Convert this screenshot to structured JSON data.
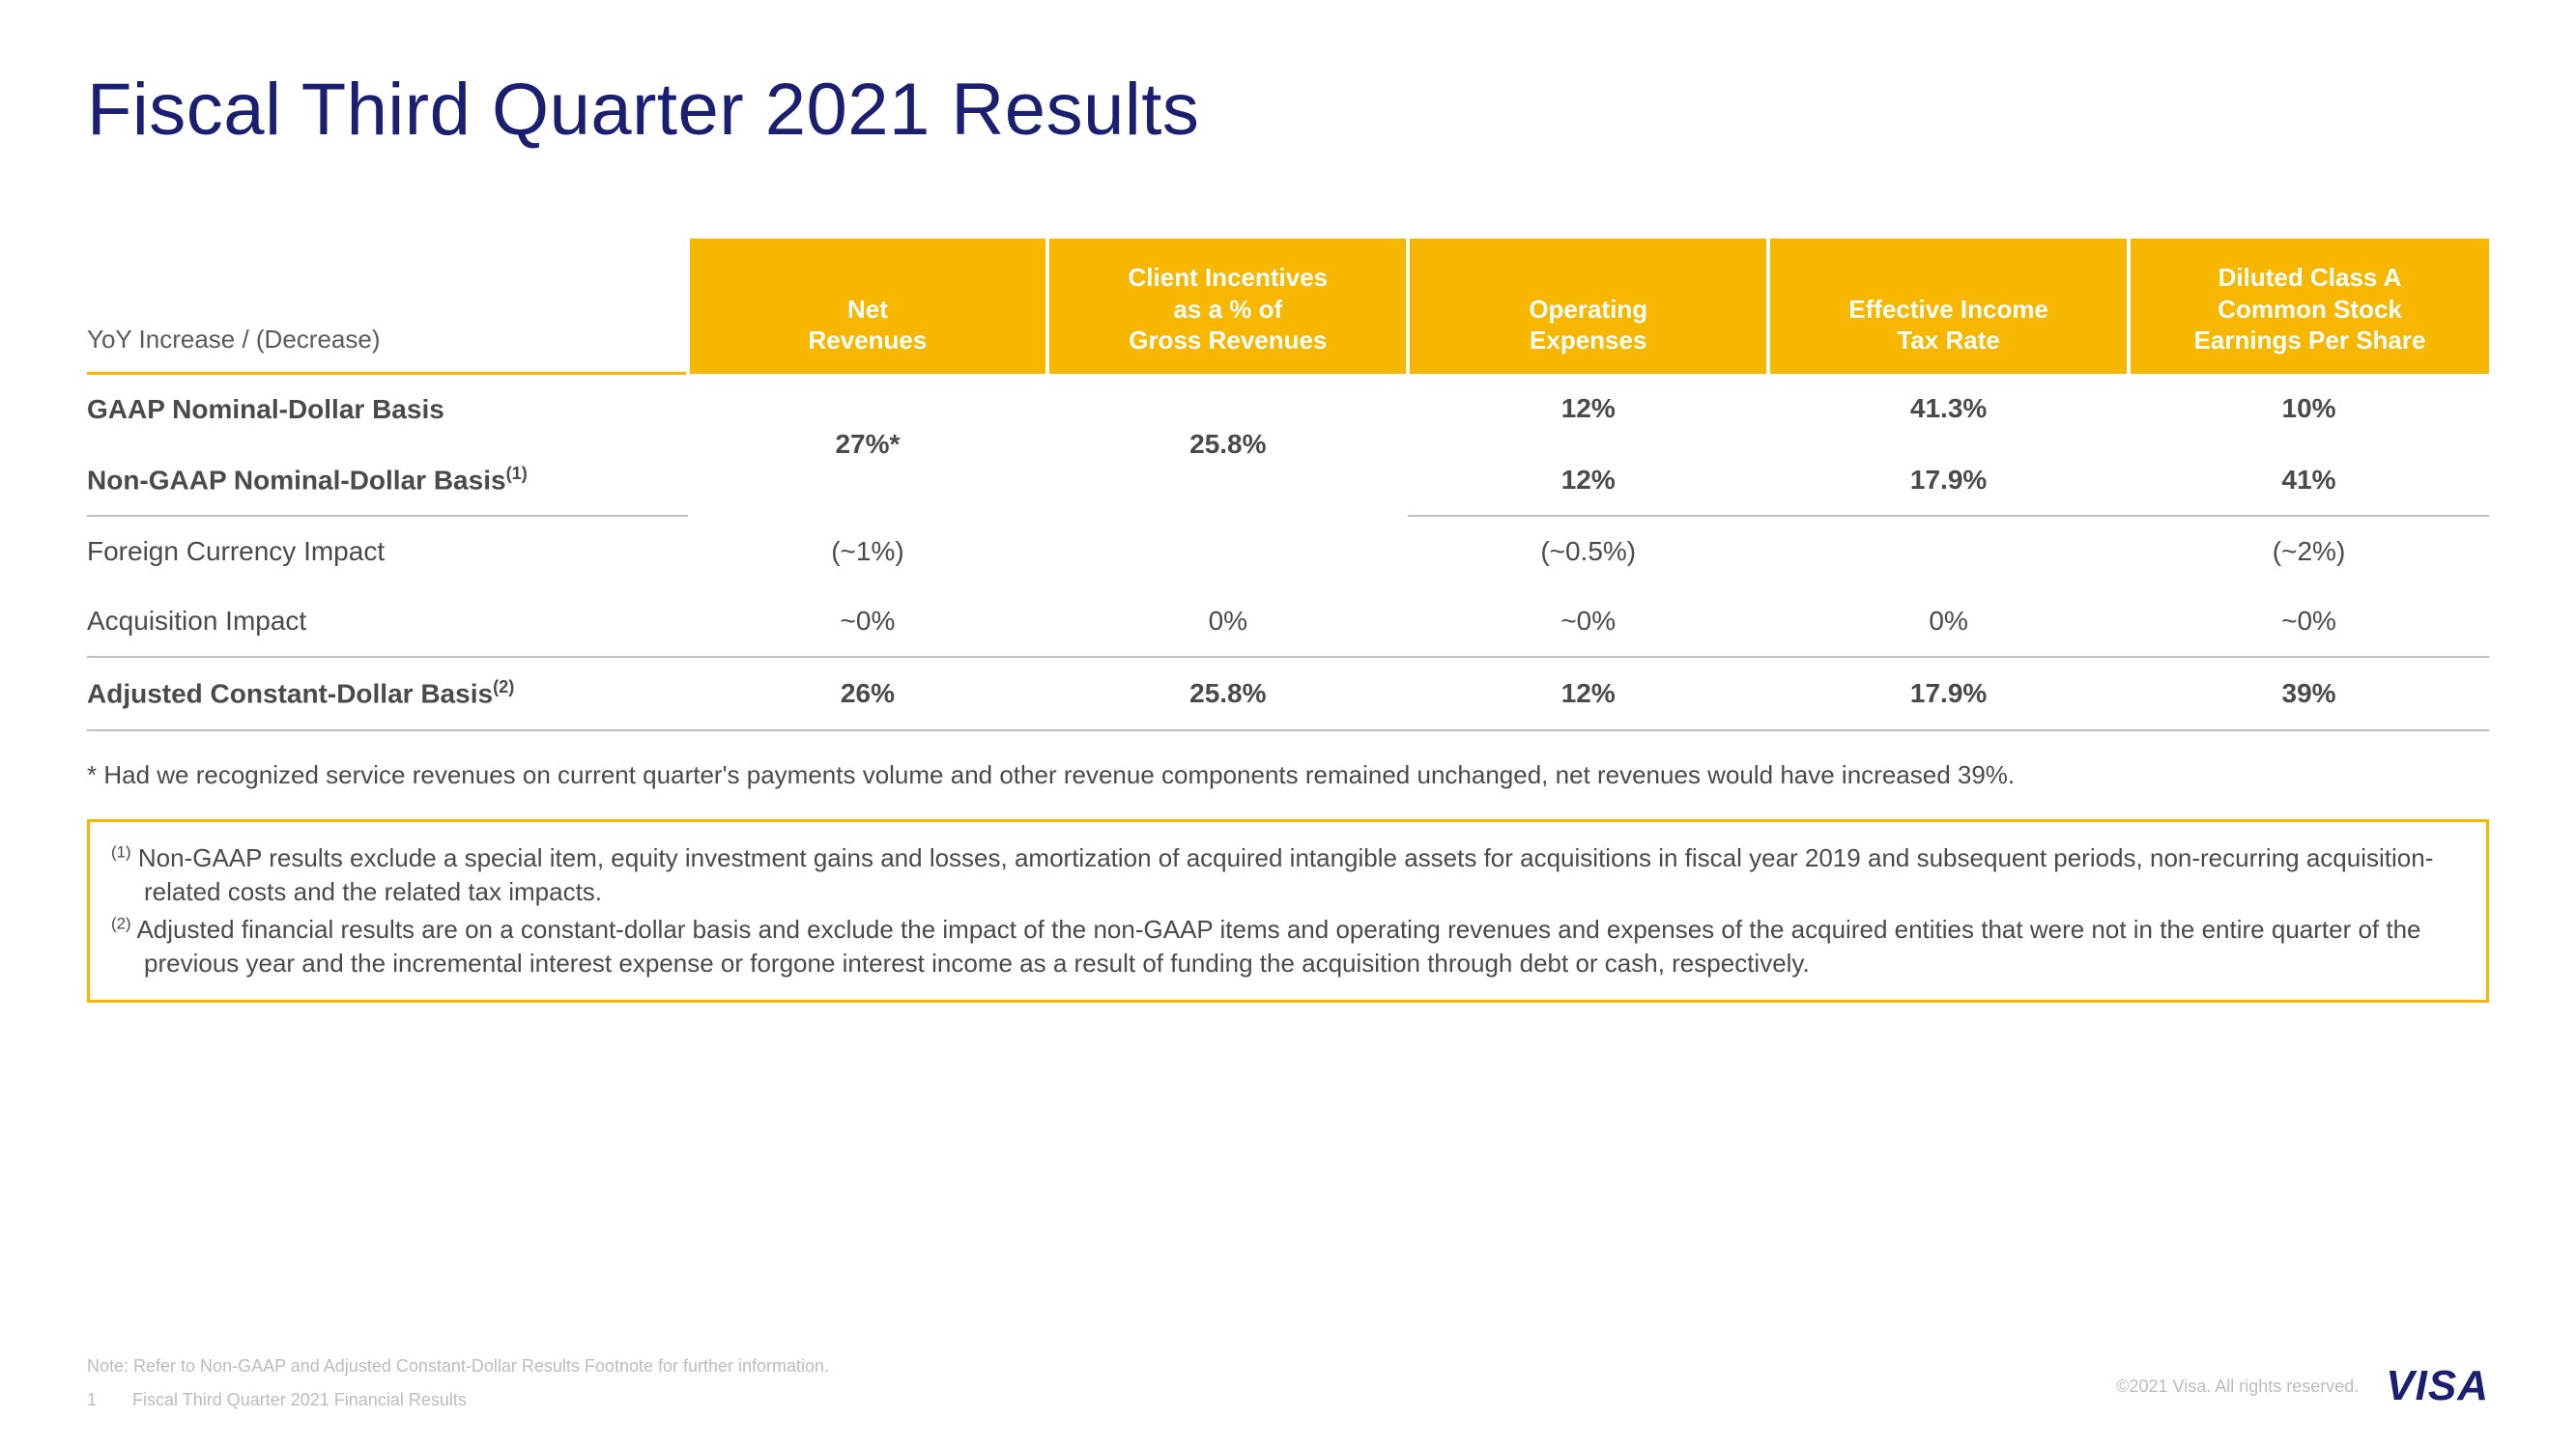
{
  "title": "Fiscal Third Quarter 2021 Results",
  "table": {
    "corner_label": "YoY Increase / (Decrease)",
    "columns": [
      "Net\nRevenues",
      "Client Incentives\nas a % of\nGross Revenues",
      "Operating\nExpenses",
      "Effective Income\nTax Rate",
      "Diluted Class A\nCommon Stock\nEarnings Per Share"
    ],
    "row_gaap_label": "GAAP Nominal-Dollar Basis",
    "row_gaap": {
      "op_exp": "12%",
      "tax": "41.3%",
      "eps": "10%"
    },
    "row_nongaap_label": "Non-GAAP Nominal-Dollar Basis(1)",
    "row_nongaap": {
      "op_exp": "12%",
      "tax": "17.9%",
      "eps": "41%"
    },
    "merged_net_rev": "27%*",
    "merged_client_inc": "25.8%",
    "row_fx_label": "Foreign Currency Impact",
    "row_fx": {
      "net_rev": "(~1%)",
      "client_inc": "",
      "op_exp": "(~0.5%)",
      "tax": "",
      "eps": "(~2%)"
    },
    "row_acq_label": "Acquisition Impact",
    "row_acq": {
      "net_rev": "~0%",
      "client_inc": "0%",
      "op_exp": "~0%",
      "tax": "0%",
      "eps": "~0%"
    },
    "row_adj_label": "Adjusted Constant-Dollar Basis(2)",
    "row_adj": {
      "net_rev": "26%",
      "client_inc": "25.8%",
      "op_exp": "12%",
      "tax": "17.9%",
      "eps": "39%"
    }
  },
  "asterisk_note": "* Had we recognized service revenues on current quarter's payments volume and other revenue components remained unchanged, net revenues would have increased 39%.",
  "note1": "(1) Non-GAAP results exclude a special item, equity investment gains and losses, amortization of acquired intangible assets for acquisitions in fiscal year 2019 and subsequent periods, non-recurring acquisition-related costs and the related tax impacts.",
  "note2": "(2) Adjusted financial results are on a constant-dollar basis and exclude the impact of the non-GAAP items and operating revenues and expenses of the acquired entities that were not in the entire quarter of the previous year and the incremental interest expense or forgone interest income as a result of funding the acquisition through debt or cash, respectively.",
  "footnote_small": "Note: Refer to Non-GAAP and Adjusted Constant-Dollar Results Footnote for further information.",
  "page_number": "1",
  "deck_name": "Fiscal Third Quarter 2021 Financial Results",
  "copyright": "©2021 Visa. All rights reserved.",
  "logo_text": "VISA",
  "colors": {
    "brand_blue": "#1a1f71",
    "brand_yellow": "#f7b600",
    "text_grey": "#4a4a4a",
    "light_grey": "#bcbcbc",
    "divider": "#bfbfbf",
    "background": "#ffffff"
  }
}
